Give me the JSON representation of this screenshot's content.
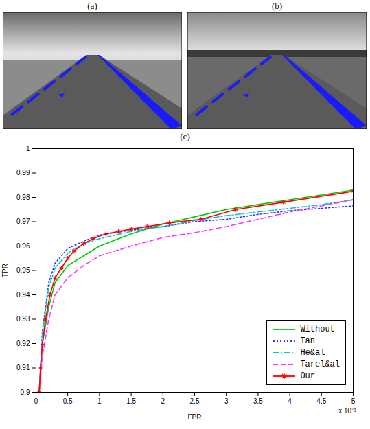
{
  "panel_labels": [
    "(a)",
    "(b)",
    "(c)"
  ],
  "chart_data": {
    "type": "line",
    "x_label": "FPR",
    "y_label": "TPR",
    "annotations": [
      "x 10⁻³"
    ],
    "xlim": [
      0,
      5
    ],
    "xticks": [
      0,
      0.5,
      1,
      1.5,
      2,
      2.5,
      3,
      3.5,
      4,
      4.5,
      5
    ],
    "ylim": [
      0.9,
      1
    ],
    "yticks": [
      0.9,
      0.91,
      0.92,
      0.93,
      0.94,
      0.95,
      0.96,
      0.97,
      0.98,
      0.99,
      1
    ],
    "grid": false,
    "legend": "bottom-right",
    "series": [
      {
        "name": "Without",
        "color": "#00c800",
        "line_style": "solid",
        "x": [
          0.05,
          0.1,
          0.2,
          0.3,
          0.5,
          0.75,
          1,
          1.5,
          2,
          2.5,
          3,
          3.5,
          4,
          4.5,
          5
        ],
        "values": [
          0.9,
          0.92,
          0.935,
          0.945,
          0.952,
          0.956,
          0.96,
          0.965,
          0.969,
          0.972,
          0.975,
          0.977,
          0.979,
          0.981,
          0.983
        ]
      },
      {
        "name": "Tan",
        "color": "#3333ff",
        "line_style": "dotted",
        "x": [
          0.05,
          0.1,
          0.2,
          0.3,
          0.5,
          0.75,
          1,
          1.5,
          2,
          2.5,
          3,
          3.5,
          4,
          4.5,
          5
        ],
        "values": [
          0.9,
          0.925,
          0.945,
          0.953,
          0.959,
          0.962,
          0.9645,
          0.9665,
          0.968,
          0.97,
          0.971,
          0.973,
          0.9745,
          0.9755,
          0.9765
        ]
      },
      {
        "name": "He&al",
        "color": "#00cccc",
        "line_style": "dashdot",
        "x": [
          0.05,
          0.1,
          0.2,
          0.3,
          0.5,
          0.75,
          1,
          1.5,
          2,
          2.5,
          3,
          3.5,
          4,
          4.5,
          5
        ],
        "values": [
          0.9,
          0.924,
          0.943,
          0.951,
          0.957,
          0.961,
          0.963,
          0.966,
          0.968,
          0.9705,
          0.9725,
          0.974,
          0.9755,
          0.977,
          0.979
        ]
      },
      {
        "name": "Tarel&al",
        "color": "#ff33ff",
        "line_style": "dashed",
        "x": [
          0.05,
          0.1,
          0.2,
          0.3,
          0.5,
          0.75,
          1,
          1.5,
          2,
          2.5,
          3,
          3.5,
          4,
          4.5,
          5
        ],
        "values": [
          0.9,
          0.915,
          0.93,
          0.94,
          0.947,
          0.952,
          0.956,
          0.96,
          0.9635,
          0.9655,
          0.968,
          0.971,
          0.974,
          0.9765,
          0.979
        ]
      },
      {
        "name": "Our",
        "color": "#ff0000",
        "line_style": "solid",
        "marker": "asterisk",
        "x": [
          0.05,
          0.07,
          0.1,
          0.15,
          0.22,
          0.3,
          0.4,
          0.5,
          0.6,
          0.75,
          0.9,
          1.1,
          1.3,
          1.5,
          1.75,
          2.1,
          2.6,
          3.15,
          3.9,
          5
        ],
        "values": [
          0.9,
          0.91,
          0.92,
          0.93,
          0.94,
          0.947,
          0.951,
          0.955,
          0.958,
          0.961,
          0.963,
          0.965,
          0.966,
          0.967,
          0.968,
          0.9695,
          0.971,
          0.975,
          0.978,
          0.9825
        ]
      }
    ]
  }
}
